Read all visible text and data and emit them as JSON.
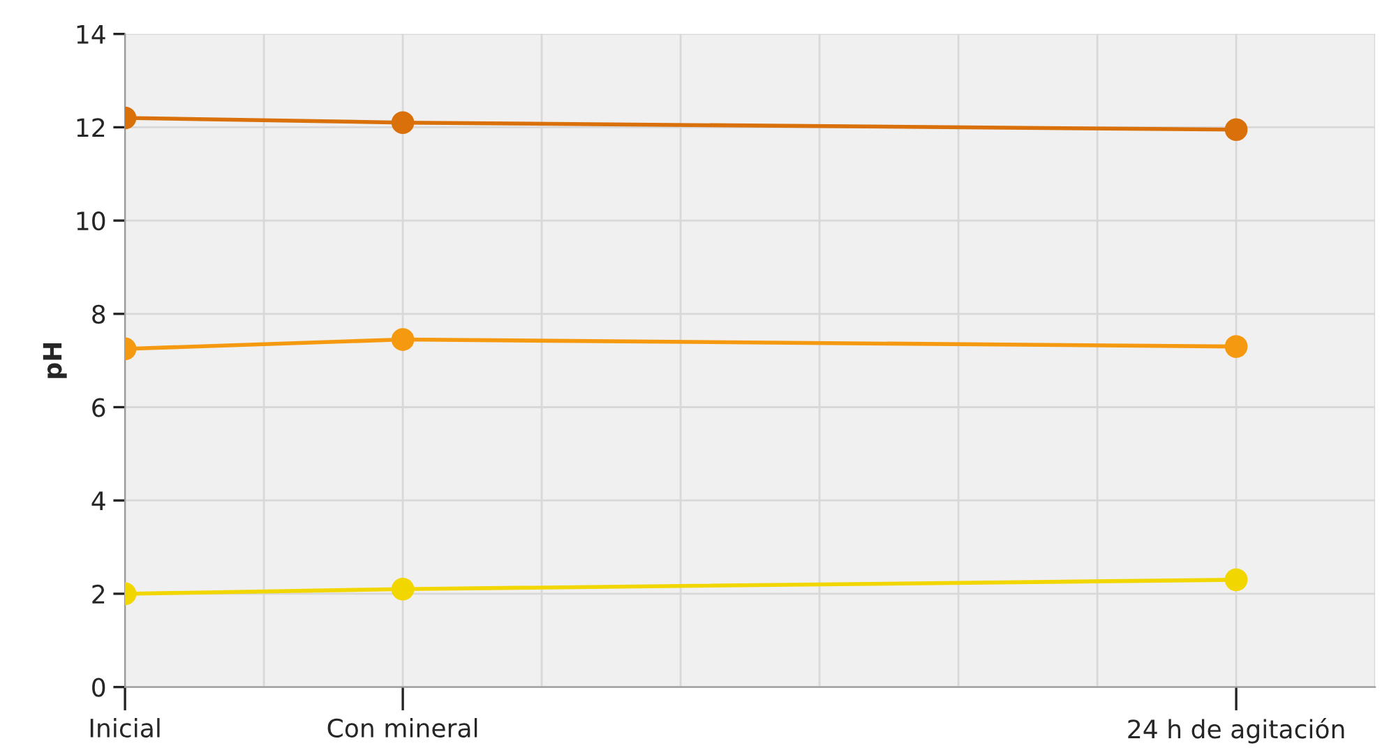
{
  "chart_data": {
    "type": "line",
    "ylabel": "pH",
    "categories": [
      "Inicial",
      null,
      "Con mineral",
      null,
      null,
      null,
      null,
      null,
      "24 h de agitación",
      null
    ],
    "ylim": [
      0,
      14
    ],
    "yticks": [
      0,
      2,
      4,
      6,
      8,
      10,
      12,
      14
    ],
    "grid": true,
    "marker": "circle",
    "line_style": "solid",
    "legend": false,
    "series": [
      {
        "color": "#d9700a",
        "values": [
          12.2,
          null,
          12.1,
          null,
          null,
          null,
          null,
          null,
          11.95,
          null
        ]
      },
      {
        "color": "#f59a10",
        "values": [
          7.25,
          null,
          7.45,
          null,
          null,
          null,
          null,
          null,
          7.3,
          null
        ]
      },
      {
        "color": "#f2d600",
        "values": [
          2.0,
          null,
          2.1,
          null,
          null,
          null,
          null,
          null,
          2.3,
          null
        ]
      }
    ]
  }
}
